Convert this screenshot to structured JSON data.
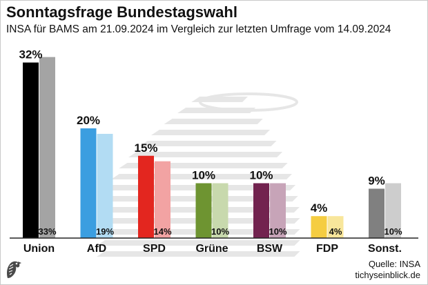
{
  "header": {
    "title": "Sonntagsfrage Bundestagswahl",
    "subtitle": "INSA für BAMS am 21.09.2024 im Vergleich zur letzten Umfrage vom 14.09.2024"
  },
  "footer": {
    "source": "Quelle: INSA",
    "site": "tichyseinblick.de"
  },
  "icons": {
    "watermark": "bundestag-dome-watermark-icon",
    "logo": "eagle-head-logo-icon"
  },
  "colors": {
    "baseline": "#222222",
    "watermark": "#e6e6e6"
  },
  "chart_data": {
    "type": "bar",
    "categories": [
      "Union",
      "AfD",
      "SPD",
      "Grüne",
      "BSW",
      "FDP",
      "Sonst."
    ],
    "series": [
      {
        "values": [
          32,
          20,
          15,
          10,
          10,
          4,
          9
        ],
        "labels": [
          "32%",
          "20%",
          "15%",
          "10%",
          "10%",
          "4%",
          "9%"
        ],
        "colors": [
          "#000000",
          "#3b9ee0",
          "#e3261f",
          "#6e9431",
          "#72234f",
          "#f5cd41",
          "#808080"
        ]
      },
      {
        "values": [
          33,
          19,
          14,
          10,
          10,
          4,
          10
        ],
        "labels": [
          "33%",
          "19%",
          "14%",
          "10%",
          "10%",
          "4%",
          "10%"
        ],
        "colors": [
          "#a4a4a4",
          "#b2dcf3",
          "#f2a3a3",
          "#c8d9ad",
          "#c7a4b8",
          "#f8e69b",
          "#cdcdcd"
        ]
      }
    ],
    "ylim": [
      0,
      33
    ],
    "grid": false,
    "legend": "none"
  }
}
